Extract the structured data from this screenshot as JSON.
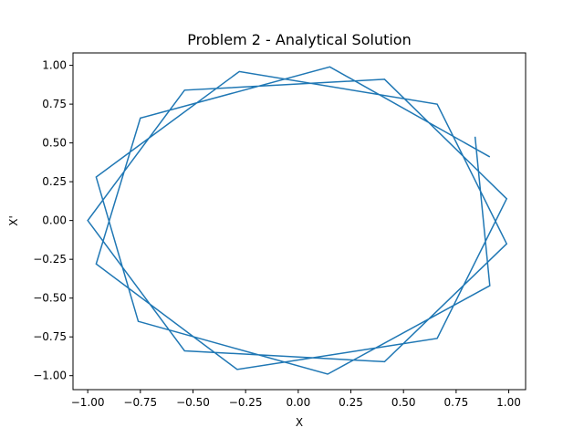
{
  "chart_data": {
    "type": "line",
    "title": "Problem 2 - Analytical Solution",
    "xlabel": "X",
    "ylabel": "X'",
    "xlim": [
      -1.07,
      1.08
    ],
    "ylim": [
      -1.09,
      1.08
    ],
    "grid": false,
    "xticks": [
      -1.0,
      -0.75,
      -0.5,
      -0.25,
      0.0,
      0.25,
      0.5,
      0.75,
      1.0
    ],
    "xtick_labels": [
      "−1.00",
      "−0.75",
      "−0.50",
      "−0.25",
      "0.00",
      "0.25",
      "0.50",
      "0.75",
      "1.00"
    ],
    "yticks": [
      -1.0,
      -0.75,
      -0.5,
      -0.25,
      0.0,
      0.25,
      0.5,
      0.75,
      1.0
    ],
    "ytick_labels": [
      "−1.00",
      "−0.75",
      "−0.50",
      "−0.25",
      "0.00",
      "0.25",
      "0.50",
      "0.75",
      "1.00"
    ],
    "series": [
      {
        "color": "#1f77b4",
        "points": [
          [
            0.84,
            0.54
          ],
          [
            0.91,
            -0.42
          ],
          [
            0.14,
            -0.99
          ],
          [
            -0.76,
            -0.65
          ],
          [
            -0.96,
            0.28
          ],
          [
            -0.28,
            0.96
          ],
          [
            0.66,
            0.75
          ],
          [
            0.99,
            -0.15
          ],
          [
            0.41,
            -0.91
          ],
          [
            -0.54,
            -0.84
          ],
          [
            -1.0,
            0.0
          ],
          [
            -0.54,
            0.84
          ],
          [
            0.41,
            0.91
          ],
          [
            0.99,
            0.14
          ],
          [
            0.66,
            -0.76
          ],
          [
            -0.29,
            -0.96
          ],
          [
            -0.96,
            -0.28
          ],
          [
            -0.75,
            0.66
          ],
          [
            0.15,
            0.99
          ],
          [
            0.91,
            0.41
          ]
        ]
      }
    ]
  }
}
